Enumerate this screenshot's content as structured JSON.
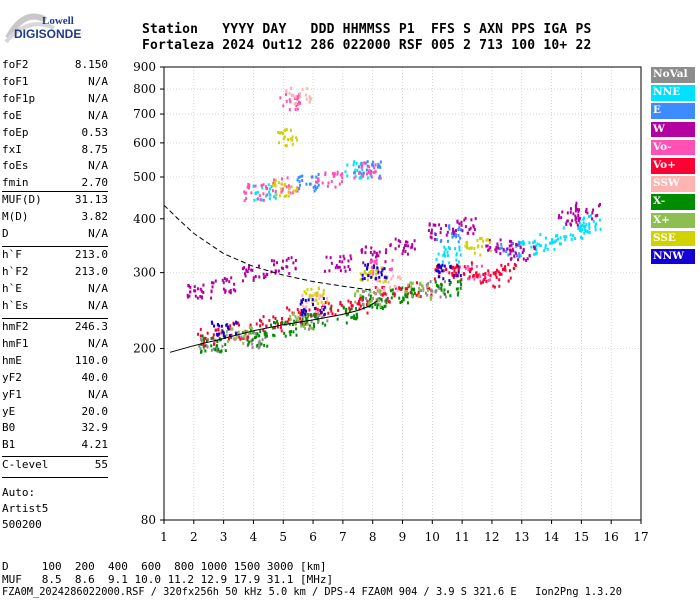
{
  "logo": {
    "line1": "Lowell",
    "line2": "DIGISONDE"
  },
  "header": {
    "line1": "Station   YYYY DAY   DDD HHMMSS P1  FFS S AXN PPS IGA PS",
    "line2": "Fortaleza 2024 Out12 286 022000 RSF 005 2 713 100 10+ 22"
  },
  "params_group1": [
    {
      "k": "foF2",
      "v": "8.150"
    },
    {
      "k": "foF1",
      "v": "N/A"
    },
    {
      "k": "foF1p",
      "v": "N/A"
    },
    {
      "k": "foE",
      "v": "N/A"
    },
    {
      "k": "foEp",
      "v": "0.53"
    },
    {
      "k": "fxI",
      "v": "8.75"
    },
    {
      "k": "foEs",
      "v": "N/A"
    },
    {
      "k": "fmin",
      "v": "2.70"
    }
  ],
  "params_group2": [
    {
      "k": "MUF(D)",
      "v": "31.13"
    },
    {
      "k": "M(D)",
      "v": "3.82"
    },
    {
      "k": "D",
      "v": "N/A"
    }
  ],
  "params_group3": [
    {
      "k": "h`F",
      "v": "213.0"
    },
    {
      "k": "h`F2",
      "v": "213.0"
    },
    {
      "k": "h`E",
      "v": "N/A"
    },
    {
      "k": "h`Es",
      "v": "N/A"
    }
  ],
  "params_group4": [
    {
      "k": "hmF2",
      "v": "246.3"
    },
    {
      "k": "hmF1",
      "v": "N/A"
    },
    {
      "k": "hmE",
      "v": "110.0"
    },
    {
      "k": "yF2",
      "v": "40.0"
    },
    {
      "k": "yF1",
      "v": "N/A"
    },
    {
      "k": "yE",
      "v": "20.0"
    },
    {
      "k": "B0",
      "v": "32.9"
    },
    {
      "k": "B1",
      "v": "4.21"
    }
  ],
  "params_group5": [
    {
      "k": "C-level",
      "v": "55"
    }
  ],
  "auto": {
    "line1": "Auto:",
    "line2": "Artist5",
    "line3": "500200"
  },
  "legend": [
    {
      "label": "NoVal",
      "color": "#8c8c8c"
    },
    {
      "label": "NNE",
      "color": "#00e0ff"
    },
    {
      "label": "E",
      "color": "#3c8cff"
    },
    {
      "label": "W",
      "color": "#b400a0"
    },
    {
      "label": "Vo-",
      "color": "#ff50b4"
    },
    {
      "label": "Vo+",
      "color": "#ff0032"
    },
    {
      "label": "SSW",
      "color": "#ffb4b4"
    },
    {
      "label": "X-",
      "color": "#008c00"
    },
    {
      "label": "X+",
      "color": "#8cbe50"
    },
    {
      "label": "SSE",
      "color": "#d2d200"
    },
    {
      "label": "NNW",
      "color": "#1400d2"
    }
  ],
  "bottom": {
    "line1": "D     100  200  400  600  800 1000 1500 3000 [km]",
    "line2": "MUF   8.5  8.6  9.1 10.0 11.2 12.9 17.9 31.1 [MHz]",
    "line3": "FZA0M_2024286022000.RSF / 320fx256h 50 kHz 5.0 km / DPS-4 FZA0M 904 / 3.9 S 321.6 E   Ion2Png 1.3.20"
  },
  "chart_data": {
    "type": "scatter",
    "xlim": [
      1,
      17
    ],
    "ylim": [
      80,
      900
    ],
    "y_scale": "log",
    "x_ticks": [
      1,
      2,
      3,
      4,
      5,
      6,
      7,
      8,
      9,
      10,
      11,
      12,
      13,
      14,
      15,
      16,
      17
    ],
    "y_ticks": [
      80,
      200,
      300,
      400,
      500,
      600,
      700,
      800,
      900
    ],
    "grid": true,
    "series": [
      {
        "name": "NoVal",
        "clusters": [
          [
            2.5,
            203
          ],
          [
            4,
            210
          ],
          [
            6,
            232
          ],
          [
            8,
            262
          ],
          [
            10,
            275
          ]
        ]
      },
      {
        "name": "NNE",
        "clusters": [
          [
            13.2,
            340
          ],
          [
            14,
            352
          ],
          [
            14.8,
            375
          ],
          [
            15.3,
            392
          ],
          [
            10.5,
            330
          ],
          [
            4.3,
            462
          ],
          [
            7.5,
            520
          ]
        ]
      },
      {
        "name": "E",
        "clusters": [
          [
            5.8,
            485
          ],
          [
            7.8,
            520
          ],
          [
            12.5,
            340
          ],
          [
            10.5,
            370
          ]
        ]
      },
      {
        "name": "W",
        "clusters": [
          [
            2.2,
            270
          ],
          [
            3,
            282
          ],
          [
            4,
            300
          ],
          [
            5,
            312
          ],
          [
            6.8,
            315
          ],
          [
            8,
            330
          ],
          [
            9,
            345
          ],
          [
            10.3,
            375
          ],
          [
            11,
            385
          ],
          [
            12.2,
            345
          ],
          [
            13,
            335
          ],
          [
            14.5,
            405
          ],
          [
            15.2,
            418
          ]
        ]
      },
      {
        "name": "Vo-",
        "clusters": [
          [
            4,
            460
          ],
          [
            5,
            478
          ],
          [
            5.2,
            750
          ],
          [
            6.5,
            495
          ],
          [
            7.8,
            520
          ],
          [
            8.2,
            310
          ],
          [
            11.5,
            300
          ]
        ]
      },
      {
        "name": "Vo+",
        "clusters": [
          [
            2.5,
            212
          ],
          [
            3.5,
            220
          ],
          [
            4.5,
            228
          ],
          [
            5.5,
            238
          ],
          [
            6.5,
            246
          ],
          [
            7.5,
            252
          ],
          [
            8.5,
            268
          ],
          [
            9.5,
            272
          ],
          [
            10.5,
            300
          ],
          [
            11,
            306
          ],
          [
            11.8,
            290
          ],
          [
            12.5,
            300
          ]
        ]
      },
      {
        "name": "SSW",
        "clusters": [
          [
            6,
            255
          ],
          [
            8.5,
            282
          ],
          [
            5.5,
            772
          ]
        ]
      },
      {
        "name": "X-",
        "clusters": [
          [
            2.6,
            205
          ],
          [
            4,
            212
          ],
          [
            5,
            222
          ],
          [
            6,
            230
          ],
          [
            7,
            240
          ],
          [
            8,
            258
          ],
          [
            9,
            265
          ],
          [
            10.5,
            275
          ]
        ]
      },
      {
        "name": "X+",
        "clusters": [
          [
            3.5,
            215
          ],
          [
            5.5,
            232
          ],
          [
            7.8,
            262
          ],
          [
            9.5,
            272
          ]
        ]
      },
      {
        "name": "SSE",
        "clusters": [
          [
            6,
            265
          ],
          [
            8,
            300
          ],
          [
            11.5,
            345
          ],
          [
            5,
            470
          ],
          [
            5,
            618
          ]
        ]
      },
      {
        "name": "NNW",
        "clusters": [
          [
            3,
            222
          ],
          [
            6,
            250
          ],
          [
            8,
            300
          ],
          [
            10.5,
            300
          ]
        ]
      }
    ],
    "profile_solid": [
      [
        1.2,
        196
      ],
      [
        2,
        203
      ],
      [
        3,
        211
      ],
      [
        4,
        220
      ],
      [
        5,
        227
      ],
      [
        6,
        233
      ],
      [
        7,
        240
      ],
      [
        7.5,
        245
      ],
      [
        7.9,
        251
      ],
      [
        8.15,
        258
      ]
    ],
    "profile_dashed": [
      [
        1,
        430
      ],
      [
        1.5,
        398
      ],
      [
        2,
        370
      ],
      [
        3,
        332
      ],
      [
        4,
        310
      ],
      [
        5,
        296
      ],
      [
        6,
        286
      ],
      [
        7,
        279
      ],
      [
        8,
        273
      ]
    ]
  }
}
